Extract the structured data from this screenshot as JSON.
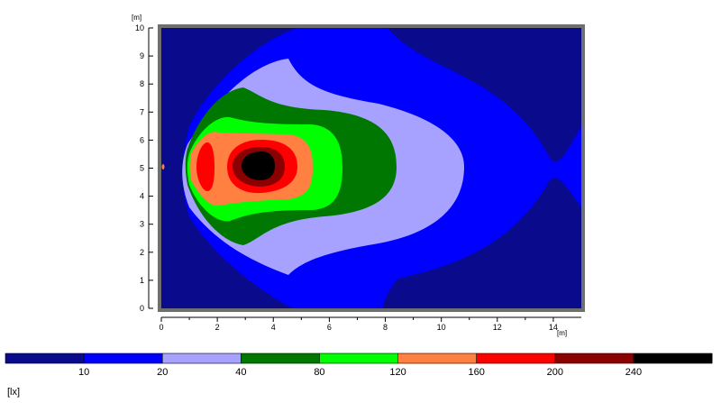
{
  "chart_data": {
    "type": "heatmap",
    "subtype": "isolux contour (filled)",
    "xlabel": "[m]",
    "ylabel": "[m]",
    "xlim": [
      0,
      15
    ],
    "ylim": [
      0,
      10
    ],
    "x_ticks": [
      "0",
      "2",
      "4",
      "6",
      "8",
      "10",
      "12",
      "14"
    ],
    "y_ticks": [
      "0",
      "1",
      "2",
      "3",
      "4",
      "5",
      "6",
      "7",
      "8",
      "9",
      "10"
    ],
    "legend": {
      "unit": "[lx]",
      "thresholds": [
        "10",
        "20",
        "40",
        "80",
        "120",
        "160",
        "200",
        "240"
      ],
      "colors": [
        "#0a0a8c",
        "#0000ff",
        "#a7a2ff",
        "#007700",
        "#00ff00",
        "#ff8040",
        "#ff0000",
        "#8b0000",
        "#000000"
      ]
    },
    "source_position": {
      "x": 3.6,
      "y": 5.0
    },
    "marker_position": {
      "x": 0.05,
      "y": 5.0
    },
    "frame_color": "#6f6f6f"
  }
}
